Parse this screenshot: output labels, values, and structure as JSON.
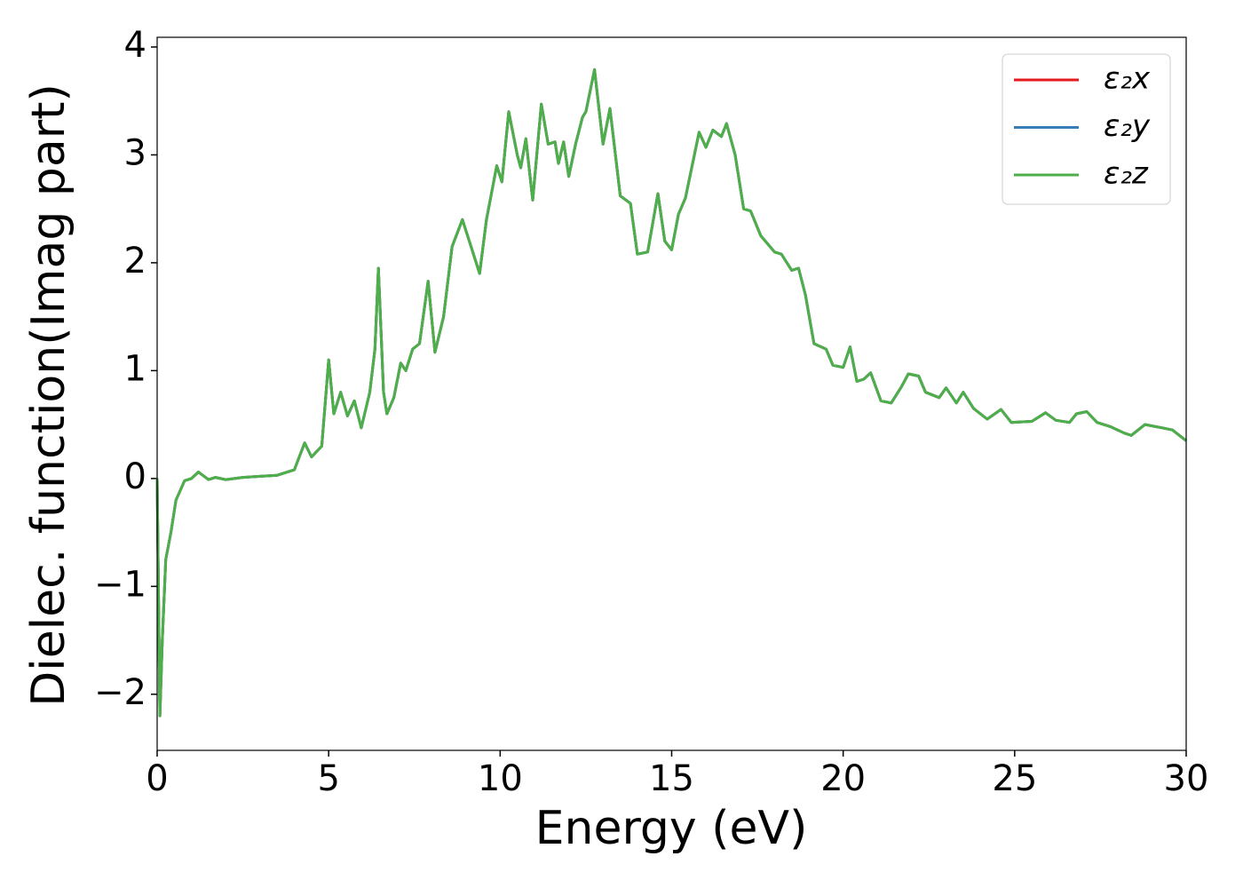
{
  "chart_data": {
    "type": "line",
    "xlabel": "Energy (eV)",
    "ylabel": "Dielec. function(Imag part)",
    "x": [
      0.0,
      0.08,
      0.15,
      0.25,
      0.4,
      0.55,
      0.8,
      1.0,
      1.2,
      1.5,
      1.7,
      2.0,
      2.5,
      3.0,
      3.5,
      4.0,
      4.3,
      4.5,
      4.8,
      5.0,
      5.15,
      5.35,
      5.55,
      5.75,
      5.95,
      6.2,
      6.35,
      6.45,
      6.6,
      6.7,
      6.9,
      7.1,
      7.25,
      7.45,
      7.65,
      7.9,
      8.1,
      8.35,
      8.6,
      8.9,
      9.1,
      9.4,
      9.6,
      9.9,
      10.05,
      10.25,
      10.5,
      10.6,
      10.75,
      10.95,
      11.2,
      11.4,
      11.6,
      11.7,
      11.85,
      12.0,
      12.2,
      12.4,
      12.5,
      12.75,
      13.0,
      13.2,
      13.5,
      13.8,
      14.0,
      14.3,
      14.6,
      14.8,
      15.0,
      15.2,
      15.4,
      15.8,
      16.0,
      16.2,
      16.45,
      16.6,
      16.85,
      17.1,
      17.3,
      17.6,
      18.0,
      18.2,
      18.5,
      18.7,
      18.9,
      19.15,
      19.5,
      19.7,
      20.0,
      20.2,
      20.4,
      20.6,
      20.8,
      21.1,
      21.4,
      21.7,
      21.9,
      22.2,
      22.4,
      22.8,
      23.0,
      23.3,
      23.5,
      23.8,
      24.2,
      24.6,
      24.9,
      25.5,
      25.9,
      26.2,
      26.6,
      26.8,
      27.1,
      27.4,
      27.8,
      28.2,
      28.4,
      28.8,
      29.3,
      29.6,
      30.0
    ],
    "series": [
      {
        "name": "ε₂x",
        "color": "#e41a1c",
        "values": [
          0.0,
          -2.2,
          -1.5,
          -0.75,
          -0.5,
          -0.2,
          -0.02,
          0.0,
          0.06,
          -0.01,
          0.01,
          -0.01,
          0.01,
          0.02,
          0.03,
          0.08,
          0.33,
          0.2,
          0.3,
          1.1,
          0.6,
          0.8,
          0.58,
          0.72,
          0.47,
          0.8,
          1.2,
          1.95,
          0.8,
          0.6,
          0.75,
          1.07,
          1.0,
          1.2,
          1.25,
          1.83,
          1.17,
          1.5,
          2.15,
          2.4,
          2.2,
          1.9,
          2.4,
          2.9,
          2.75,
          3.4,
          3.0,
          2.88,
          3.15,
          2.58,
          3.47,
          3.1,
          3.12,
          2.92,
          3.12,
          2.8,
          3.1,
          3.35,
          3.4,
          3.79,
          3.1,
          3.43,
          2.62,
          2.55,
          2.08,
          2.1,
          2.64,
          2.2,
          2.12,
          2.45,
          2.6,
          3.21,
          3.07,
          3.23,
          3.17,
          3.29,
          3.0,
          2.5,
          2.48,
          2.25,
          2.1,
          2.08,
          1.93,
          1.95,
          1.7,
          1.25,
          1.2,
          1.05,
          1.03,
          1.22,
          0.9,
          0.92,
          0.98,
          0.72,
          0.7,
          0.85,
          0.97,
          0.95,
          0.8,
          0.75,
          0.84,
          0.7,
          0.8,
          0.65,
          0.55,
          0.64,
          0.52,
          0.53,
          0.61,
          0.54,
          0.52,
          0.6,
          0.62,
          0.52,
          0.48,
          0.42,
          0.4,
          0.5,
          0.47,
          0.45,
          0.35
        ]
      },
      {
        "name": "ε₂y",
        "color": "#377eb8",
        "values": [
          0.0,
          -2.2,
          -1.5,
          -0.75,
          -0.5,
          -0.2,
          -0.02,
          0.0,
          0.06,
          -0.01,
          0.01,
          -0.01,
          0.01,
          0.02,
          0.03,
          0.08,
          0.33,
          0.2,
          0.3,
          1.1,
          0.6,
          0.8,
          0.58,
          0.72,
          0.47,
          0.8,
          1.2,
          1.95,
          0.8,
          0.6,
          0.75,
          1.07,
          1.0,
          1.2,
          1.25,
          1.83,
          1.17,
          1.5,
          2.15,
          2.4,
          2.2,
          1.9,
          2.4,
          2.9,
          2.75,
          3.4,
          3.0,
          2.88,
          3.15,
          2.58,
          3.47,
          3.1,
          3.12,
          2.92,
          3.12,
          2.8,
          3.1,
          3.35,
          3.4,
          3.79,
          3.1,
          3.43,
          2.62,
          2.55,
          2.08,
          2.1,
          2.64,
          2.2,
          2.12,
          2.45,
          2.6,
          3.21,
          3.07,
          3.23,
          3.17,
          3.29,
          3.0,
          2.5,
          2.48,
          2.25,
          2.1,
          2.08,
          1.93,
          1.95,
          1.7,
          1.25,
          1.2,
          1.05,
          1.03,
          1.22,
          0.9,
          0.92,
          0.98,
          0.72,
          0.7,
          0.85,
          0.97,
          0.95,
          0.8,
          0.75,
          0.84,
          0.7,
          0.8,
          0.65,
          0.55,
          0.64,
          0.52,
          0.53,
          0.61,
          0.54,
          0.52,
          0.6,
          0.62,
          0.52,
          0.48,
          0.42,
          0.4,
          0.5,
          0.47,
          0.45,
          0.35
        ]
      },
      {
        "name": "ε₂z",
        "color": "#4daf4a",
        "values": [
          0.0,
          -2.2,
          -1.5,
          -0.75,
          -0.5,
          -0.2,
          -0.02,
          0.0,
          0.06,
          -0.01,
          0.01,
          -0.01,
          0.01,
          0.02,
          0.03,
          0.08,
          0.33,
          0.2,
          0.3,
          1.1,
          0.6,
          0.8,
          0.58,
          0.72,
          0.47,
          0.8,
          1.2,
          1.95,
          0.8,
          0.6,
          0.75,
          1.07,
          1.0,
          1.2,
          1.25,
          1.83,
          1.17,
          1.5,
          2.15,
          2.4,
          2.2,
          1.9,
          2.4,
          2.9,
          2.75,
          3.4,
          3.0,
          2.88,
          3.15,
          2.58,
          3.47,
          3.1,
          3.12,
          2.92,
          3.12,
          2.8,
          3.1,
          3.35,
          3.4,
          3.79,
          3.1,
          3.43,
          2.62,
          2.55,
          2.08,
          2.1,
          2.64,
          2.2,
          2.12,
          2.45,
          2.6,
          3.21,
          3.07,
          3.23,
          3.17,
          3.29,
          3.0,
          2.5,
          2.48,
          2.25,
          2.1,
          2.08,
          1.93,
          1.95,
          1.7,
          1.25,
          1.2,
          1.05,
          1.03,
          1.22,
          0.9,
          0.92,
          0.98,
          0.72,
          0.7,
          0.85,
          0.97,
          0.95,
          0.8,
          0.75,
          0.84,
          0.7,
          0.8,
          0.65,
          0.55,
          0.64,
          0.52,
          0.53,
          0.61,
          0.54,
          0.52,
          0.6,
          0.62,
          0.52,
          0.48,
          0.42,
          0.4,
          0.5,
          0.47,
          0.45,
          0.35
        ]
      }
    ],
    "xlim": [
      0,
      30
    ],
    "xticks": [
      0,
      5,
      10,
      15,
      20,
      25,
      30
    ],
    "ylim": [
      -2.52,
      4.09
    ],
    "yticks": [
      {
        "value": -2,
        "label": "−2"
      },
      {
        "value": -1,
        "label": "−1"
      },
      0,
      1,
      2,
      3,
      4
    ],
    "grid": false,
    "legend": "upper right"
  }
}
